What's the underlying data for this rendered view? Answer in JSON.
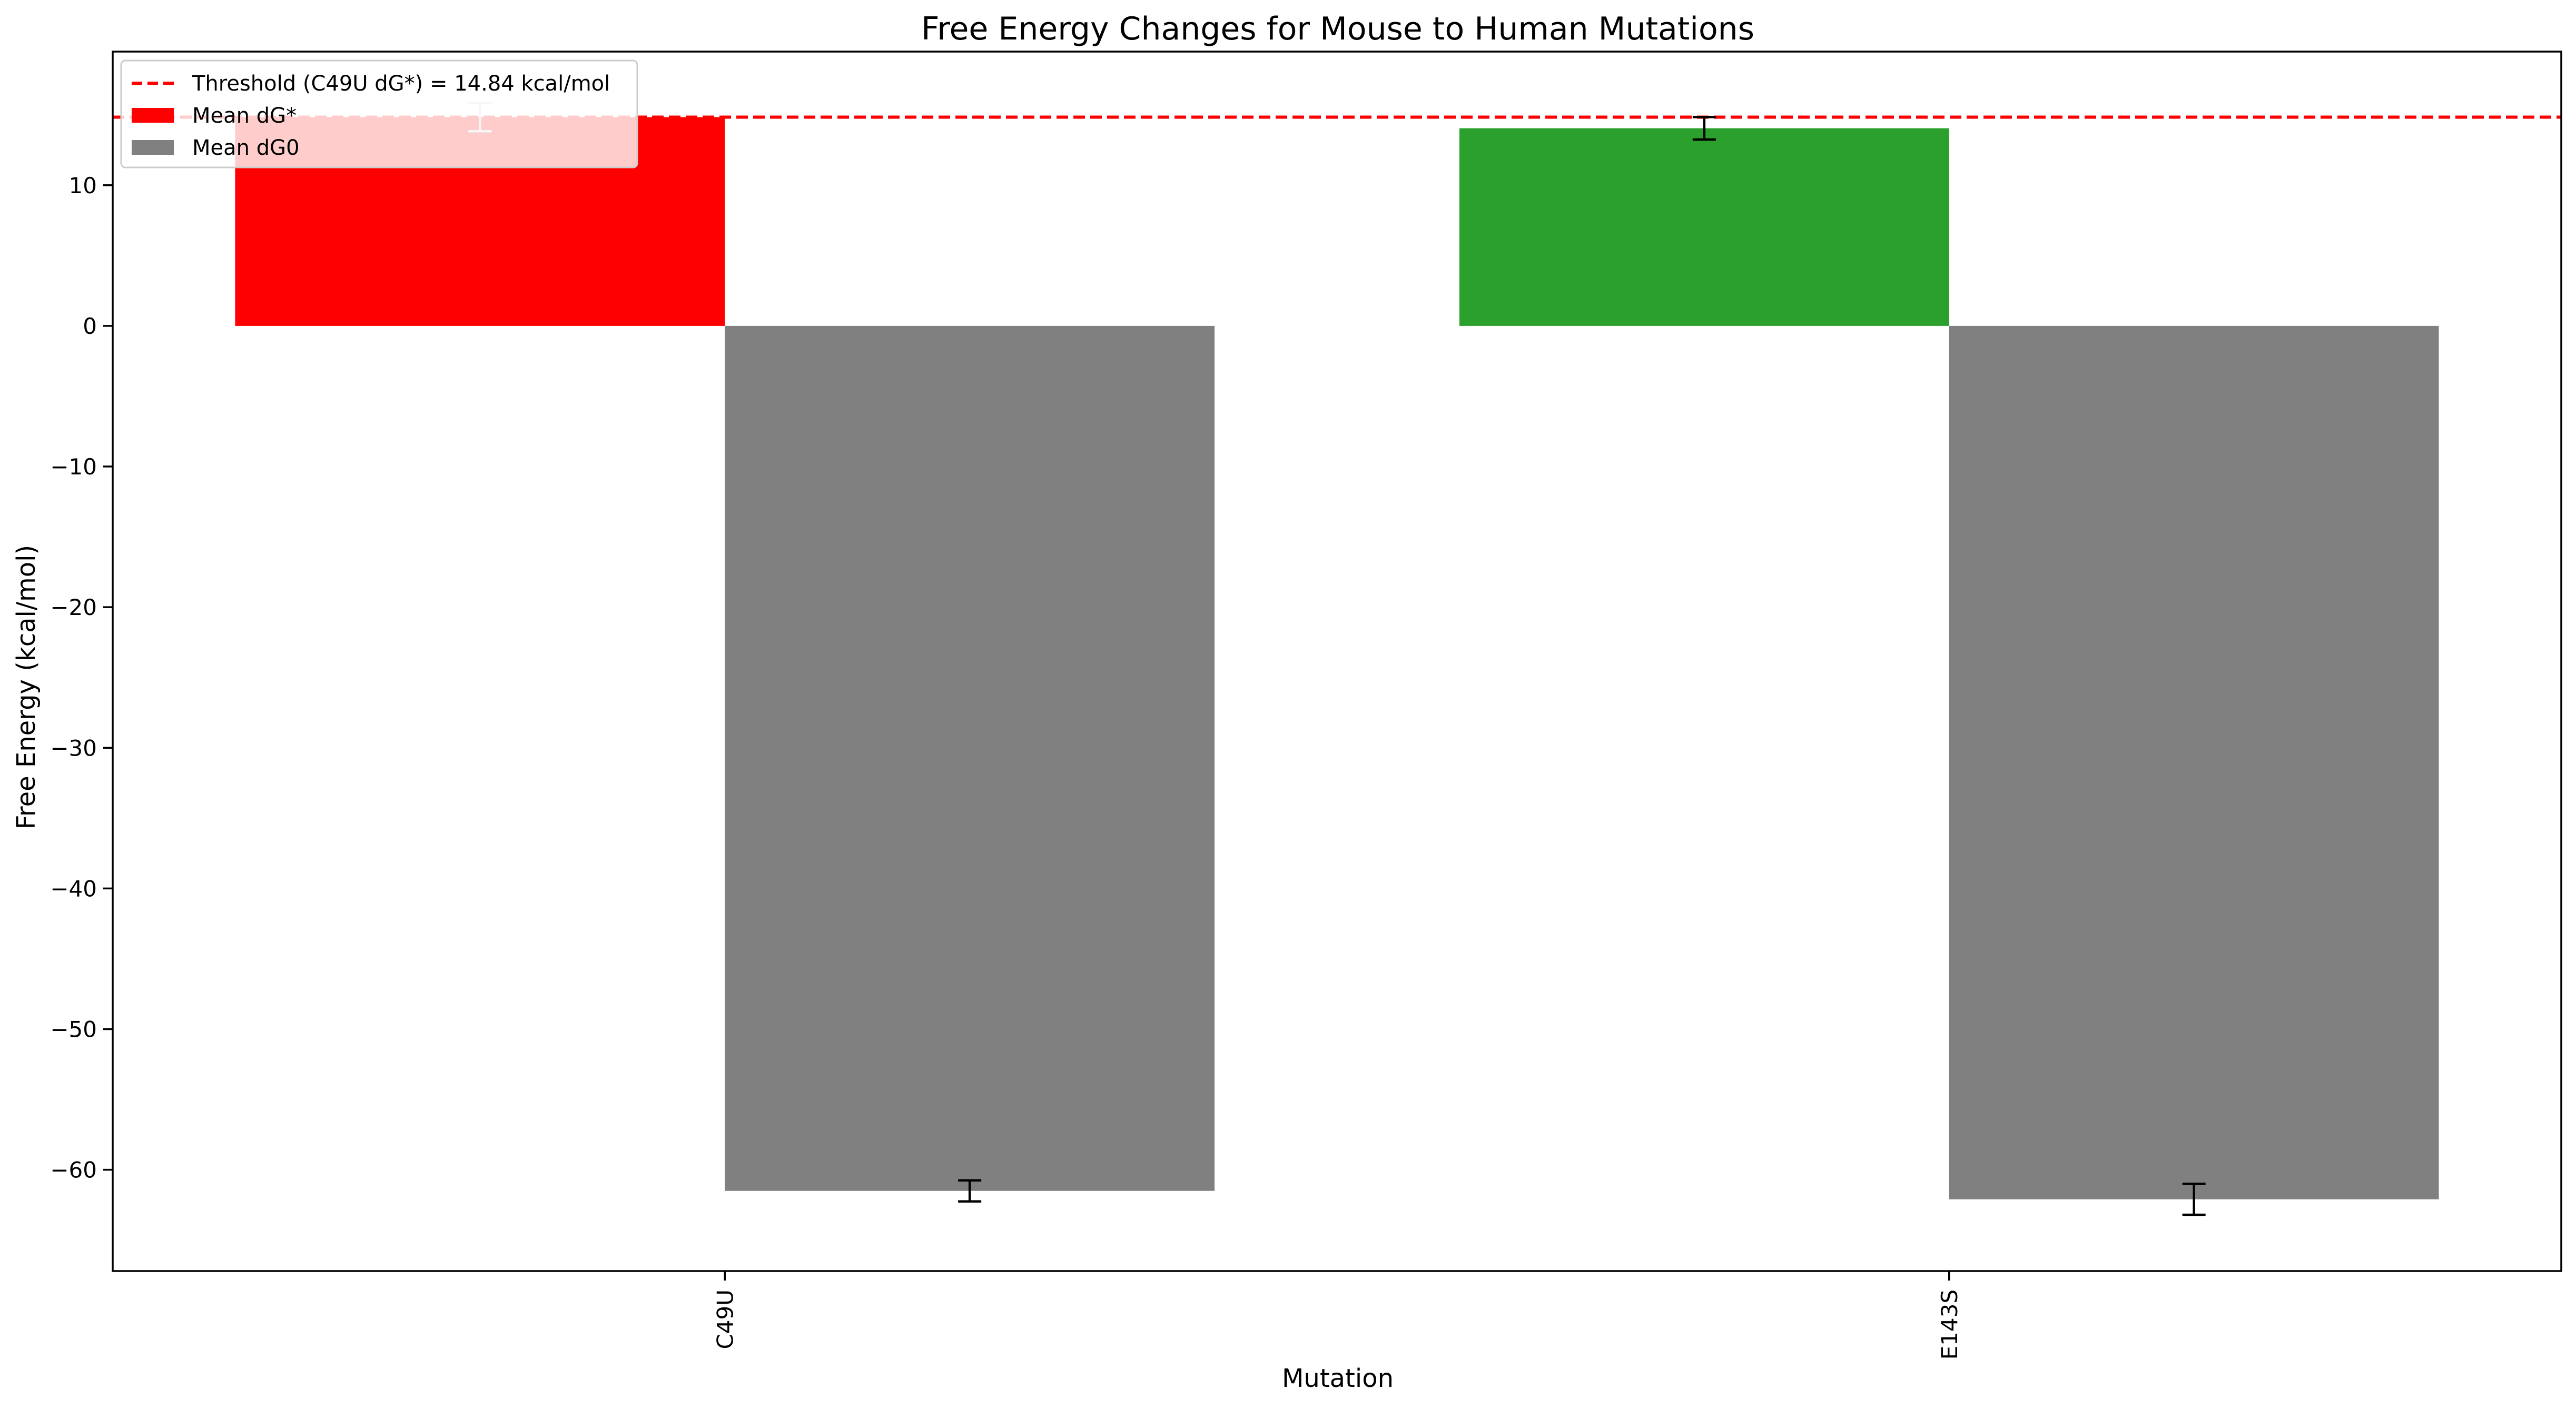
{
  "chart_data": {
    "type": "bar",
    "title": "Free Energy Changes for Mouse to Human Mutations",
    "xlabel": "Mutation",
    "ylabel": "Free Energy (kcal/mol)",
    "categories": [
      "C49U",
      "E143S"
    ],
    "ylim": [
      -67.2,
      19.5
    ],
    "yticks": [
      10,
      0,
      -10,
      -20,
      -30,
      -40,
      -50,
      -60
    ],
    "ytick_labels": [
      "10",
      "0",
      "−10",
      "−20",
      "−30",
      "−40",
      "−50",
      "−60"
    ],
    "grid": false,
    "legend_position": "top-left",
    "series": [
      {
        "name": "Mean dG*",
        "values": [
          14.84,
          14.05
        ],
        "errors": [
          1.0,
          0.8
        ],
        "bar_colors": [
          "#ff0000",
          "#2ca02c"
        ],
        "legend_color": "#ff0000",
        "errorbar_colors": [
          "#d3d3d3",
          "#000000"
        ]
      },
      {
        "name": "Mean dG0",
        "values": [
          -61.5,
          -62.1
        ],
        "errors": [
          0.75,
          1.1
        ],
        "bar_colors": [
          "#808080",
          "#808080"
        ],
        "legend_color": "#808080",
        "errorbar_colors": [
          "#000000",
          "#000000"
        ]
      }
    ],
    "threshold": {
      "label": "Threshold (C49U dG*) = 14.84 kcal/mol",
      "value": 14.84,
      "color": "#ff0000",
      "style": "dashed"
    }
  }
}
